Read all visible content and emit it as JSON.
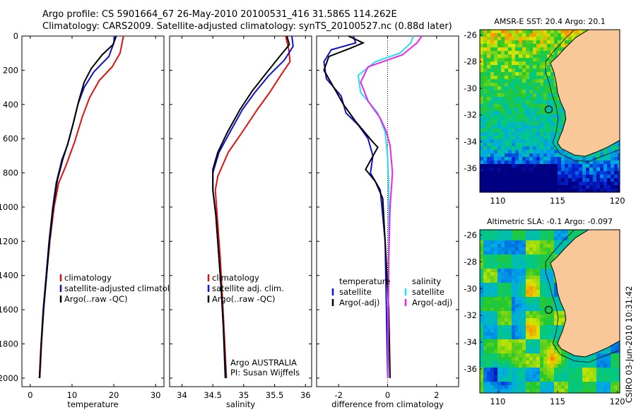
{
  "header": {
    "title_line1": "Argo profile: CS 5901664_67 26-May-2010 20100531_416 31.586S 114.262E",
    "title_line2": "Climatology: CARS2009. Satellite-adjusted climatology: synTS_20100527.nc (0.88d later)"
  },
  "footer": {
    "stamp": "CSIRO 03-Jun-2010 10:31:42"
  },
  "colors": {
    "climatology": "#dd1111",
    "satellite": "#1111cc",
    "argo": "#000000",
    "argo_adj": "#ee22ee",
    "sat_salinity": "#22e0ee",
    "land": "#f8c898"
  },
  "chart_data": [
    {
      "type": "line",
      "id": "temperature",
      "xlabel": "temperature",
      "ylabel": "",
      "xlim": [
        -2,
        32
      ],
      "ylim": [
        2050,
        0
      ],
      "y_reversed": true,
      "xticks": [
        0,
        10,
        20,
        30
      ],
      "yticks": [
        0,
        200,
        400,
        600,
        800,
        1000,
        1200,
        1400,
        1600,
        1800,
        2000
      ],
      "legend": [
        "climatology",
        "satellite-adjusted climatology",
        "Argo(..raw -QC)"
      ],
      "legend_position": "bottom-right",
      "series": [
        {
          "name": "climatology",
          "color": "#dd1111",
          "points": [
            [
              22.3,
              0
            ],
            [
              21.5,
              100
            ],
            [
              19.6,
              180
            ],
            [
              16.5,
              260
            ],
            [
              14.2,
              360
            ],
            [
              12.5,
              470
            ],
            [
              10.6,
              620
            ],
            [
              9.7,
              680
            ],
            [
              8.5,
              760
            ],
            [
              6.8,
              860
            ],
            [
              5.7,
              1000
            ],
            [
              4.7,
              1200
            ],
            [
              3.9,
              1400
            ],
            [
              3.2,
              1600
            ],
            [
              2.7,
              1800
            ],
            [
              2.3,
              2000
            ]
          ]
        },
        {
          "name": "satellite-adjusted climatology",
          "color": "#1111cc",
          "points": [
            [
              20.1,
              0
            ],
            [
              20.0,
              40
            ],
            [
              18.8,
              120
            ],
            [
              15.2,
              210
            ],
            [
              12.9,
              300
            ],
            [
              11.4,
              400
            ],
            [
              10.2,
              520
            ],
            [
              8.9,
              640
            ],
            [
              7.6,
              720
            ],
            [
              6.2,
              860
            ],
            [
              5.4,
              1000
            ],
            [
              4.5,
              1200
            ],
            [
              3.8,
              1400
            ],
            [
              3.1,
              1600
            ],
            [
              2.6,
              1800
            ],
            [
              2.2,
              2000
            ]
          ]
        },
        {
          "name": "Argo(..raw -QC)",
          "color": "#000000",
          "points": [
            [
              20.6,
              0
            ],
            [
              19.8,
              50
            ],
            [
              17.2,
              110
            ],
            [
              14.6,
              190
            ],
            [
              12.9,
              270
            ],
            [
              11.6,
              380
            ],
            [
              10.4,
              500
            ],
            [
              9.1,
              620
            ],
            [
              7.8,
              720
            ],
            [
              6.5,
              840
            ],
            [
              5.5,
              1000
            ],
            [
              4.6,
              1200
            ],
            [
              3.9,
              1400
            ],
            [
              3.2,
              1600
            ],
            [
              2.6,
              1800
            ],
            [
              2.2,
              2000
            ]
          ]
        }
      ]
    },
    {
      "type": "line",
      "id": "salinity",
      "xlabel": "salinity",
      "ylabel": "",
      "xlim": [
        33.8,
        36.1
      ],
      "ylim": [
        2050,
        0
      ],
      "y_reversed": true,
      "xticks": [
        34,
        34.5,
        35,
        35.5,
        36
      ],
      "legend": [
        "climatology",
        "satellite adj. clim.",
        "Argo(..raw -QC)"
      ],
      "legend_position": "bottom-right",
      "annotation": [
        "Argo AUSTRALIA",
        "PI: Susan Wijffels"
      ],
      "series": [
        {
          "name": "climatology",
          "color": "#dd1111",
          "points": [
            [
              35.68,
              0
            ],
            [
              35.73,
              80
            ],
            [
              35.75,
              150
            ],
            [
              35.6,
              230
            ],
            [
              35.42,
              330
            ],
            [
              35.22,
              430
            ],
            [
              34.98,
              560
            ],
            [
              34.75,
              680
            ],
            [
              34.58,
              820
            ],
            [
              34.54,
              900
            ],
            [
              34.57,
              1050
            ],
            [
              34.62,
              1300
            ],
            [
              34.65,
              1500
            ],
            [
              34.68,
              1700
            ],
            [
              34.72,
              2000
            ]
          ]
        },
        {
          "name": "satellite adj. clim.",
          "color": "#1111cc",
          "points": [
            [
              35.78,
              0
            ],
            [
              35.8,
              60
            ],
            [
              35.66,
              140
            ],
            [
              35.41,
              230
            ],
            [
              35.18,
              330
            ],
            [
              34.98,
              430
            ],
            [
              34.78,
              560
            ],
            [
              34.6,
              680
            ],
            [
              34.5,
              800
            ],
            [
              34.5,
              900
            ],
            [
              34.55,
              1050
            ],
            [
              34.6,
              1300
            ],
            [
              34.64,
              1500
            ],
            [
              34.67,
              1700
            ],
            [
              34.7,
              2000
            ]
          ]
        },
        {
          "name": "Argo(..raw -QC)",
          "color": "#000000",
          "points": [
            [
              35.7,
              0
            ],
            [
              35.74,
              50
            ],
            [
              35.58,
              120
            ],
            [
              35.38,
              210
            ],
            [
              35.14,
              320
            ],
            [
              34.94,
              430
            ],
            [
              34.74,
              560
            ],
            [
              34.58,
              680
            ],
            [
              34.5,
              780
            ],
            [
              34.5,
              900
            ],
            [
              34.55,
              1050
            ],
            [
              34.6,
              1300
            ],
            [
              34.64,
              1500
            ],
            [
              34.67,
              1700
            ],
            [
              34.71,
              2000
            ]
          ]
        }
      ]
    },
    {
      "type": "line",
      "id": "difference",
      "xlabel": "difference from climatology",
      "ylabel": "",
      "xlim": [
        -2.9,
        2.9
      ],
      "ylim": [
        2050,
        0
      ],
      "y_reversed": true,
      "xticks": [
        -2,
        0,
        2
      ],
      "legend_left_title": "temperature",
      "legend_right_title": "salinity",
      "legend_left": [
        "satellite",
        "Argo(-adj)"
      ],
      "legend_right": [
        "satellite",
        "Argo(-adj)"
      ],
      "legend_position": "bottom",
      "series": [
        {
          "name": "temperature satellite",
          "color": "#1111cc",
          "points": [
            [
              -1.4,
              0
            ],
            [
              -1.3,
              40
            ],
            [
              -2.3,
              80
            ],
            [
              -2.6,
              150
            ],
            [
              -2.5,
              250
            ],
            [
              -1.9,
              350
            ],
            [
              -1.7,
              450
            ],
            [
              -1.2,
              520
            ],
            [
              -0.8,
              600
            ],
            [
              -0.6,
              700
            ],
            [
              -0.7,
              800
            ],
            [
              -0.3,
              900
            ],
            [
              -0.1,
              1200
            ],
            [
              -0.05,
              1600
            ],
            [
              0,
              2000
            ]
          ]
        },
        {
          "name": "temperature Argo(-adj)",
          "color": "#000000",
          "points": [
            [
              -1.6,
              0
            ],
            [
              -1.0,
              40
            ],
            [
              -1.5,
              70
            ],
            [
              -2.4,
              120
            ],
            [
              -2.6,
              200
            ],
            [
              -2.2,
              300
            ],
            [
              -1.8,
              400
            ],
            [
              -1.3,
              500
            ],
            [
              -0.6,
              620
            ],
            [
              -0.4,
              650
            ],
            [
              -0.9,
              780
            ],
            [
              -0.5,
              850
            ],
            [
              -0.2,
              950
            ],
            [
              -0.1,
              1200
            ],
            [
              0.05,
              1600
            ],
            [
              0.1,
              2000
            ]
          ]
        },
        {
          "name": "salinity satellite",
          "color": "#22e0ee",
          "points": [
            [
              1.05,
              0
            ],
            [
              0.95,
              40
            ],
            [
              0.5,
              100
            ],
            [
              -0.5,
              150
            ],
            [
              -1.2,
              230
            ],
            [
              -1.1,
              330
            ],
            [
              -0.4,
              450
            ],
            [
              -0.1,
              560
            ],
            [
              0,
              700
            ],
            [
              0.05,
              900
            ],
            [
              0.05,
              1200
            ],
            [
              0.03,
              1600
            ],
            [
              0,
              2000
            ]
          ]
        },
        {
          "name": "salinity Argo(-adj)",
          "color": "#ee22ee",
          "points": [
            [
              1.4,
              0
            ],
            [
              1.2,
              40
            ],
            [
              0.6,
              110
            ],
            [
              -0.8,
              180
            ],
            [
              -1.1,
              270
            ],
            [
              -0.8,
              380
            ],
            [
              -0.3,
              480
            ],
            [
              -0.05,
              560
            ],
            [
              0.1,
              640
            ],
            [
              0.2,
              800
            ],
            [
              0.1,
              1000
            ],
            [
              0.05,
              1300
            ],
            [
              0.03,
              1600
            ],
            [
              0.02,
              2000
            ]
          ]
        }
      ]
    },
    {
      "type": "heatmap",
      "id": "sst",
      "title": "AMSR-E SST: 20.4  Argo: 20.1",
      "xlim": [
        108.5,
        120.2
      ],
      "ylim": [
        -37.8,
        -25.6
      ],
      "xticks": [
        110,
        115,
        120
      ],
      "yticks": [
        -26,
        -28,
        -30,
        -32,
        -34,
        -36
      ],
      "argo_location": [
        114.262,
        -31.586
      ]
    },
    {
      "type": "heatmap",
      "id": "sla",
      "title": "Altimetric SLA: -0.1  Argo: -0.097",
      "xlim": [
        108.5,
        120.2
      ],
      "ylim": [
        -37.8,
        -25.6
      ],
      "xticks": [
        110,
        115,
        120
      ],
      "yticks": [
        -26,
        -28,
        -30,
        -32,
        -34,
        -36
      ],
      "argo_location": [
        114.262,
        -31.586
      ]
    }
  ]
}
